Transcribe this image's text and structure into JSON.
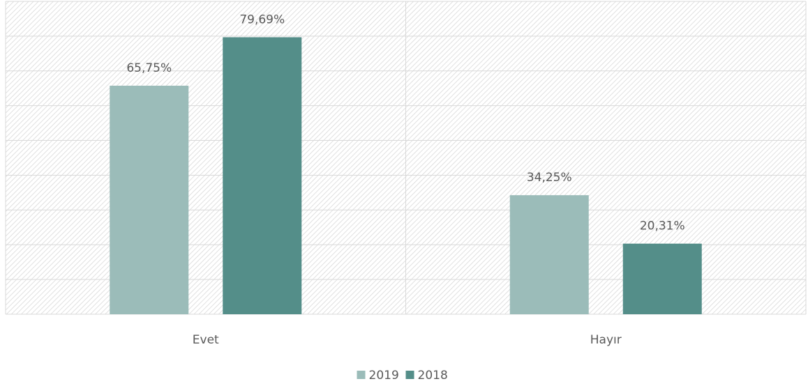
{
  "chart_data": {
    "type": "bar",
    "categories": [
      "Evet",
      "Hayır"
    ],
    "series": [
      {
        "name": "2019",
        "color": "#9bbcb9",
        "values": [
          65.75,
          34.25
        ],
        "value_labels": [
          "65,75%",
          "34,25%"
        ]
      },
      {
        "name": "2018",
        "color": "#548e89",
        "values": [
          79.69,
          20.31
        ],
        "value_labels": [
          "79,69%",
          "20,31%"
        ]
      }
    ],
    "ylim": [
      0,
      90
    ],
    "yticks": [
      0,
      10,
      20,
      30,
      40,
      50,
      60,
      70,
      80,
      90
    ],
    "grid": true,
    "legend": "bottom"
  }
}
